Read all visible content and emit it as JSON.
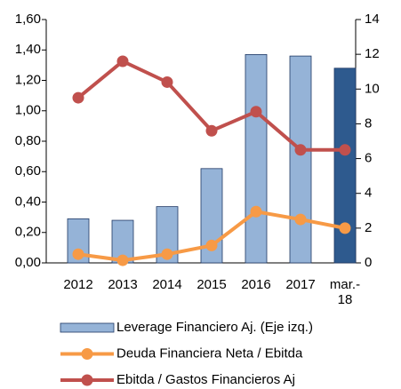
{
  "chart_data": {
    "type": "bar_line",
    "categories": [
      "2012",
      "2013",
      "2014",
      "2015",
      "2016",
      "2017",
      "mar.- 18"
    ],
    "series": [
      {
        "name": "Leverage Financiero Aj. (Eje izq.)",
        "type": "bar",
        "color": "#95b3d7",
        "colors": [
          "#95b3d7",
          "#95b3d7",
          "#95b3d7",
          "#95b3d7",
          "#95b3d7",
          "#95b3d7",
          "#2e5a8e"
        ],
        "values": [
          0.29,
          0.28,
          0.37,
          0.62,
          1.37,
          1.36,
          1.28
        ]
      },
      {
        "name": "Deuda Financiera Neta / Ebitda",
        "type": "line",
        "axis": "y2",
        "color": "#f79a46",
        "values": [
          0.5,
          0.15,
          0.5,
          1.0,
          2.95,
          2.5,
          2.0
        ]
      },
      {
        "name": "Ebitda / Gastos Financieros Aj",
        "type": "line",
        "axis": "y2",
        "color": "#c0504d",
        "values": [
          9.5,
          11.6,
          10.4,
          7.6,
          8.7,
          6.5,
          6.5
        ]
      }
    ],
    "ylim": [
      0,
      1.6
    ],
    "yticks": [
      {
        "value": 0,
        "label": "0,00"
      },
      {
        "value": 0.2,
        "label": "0,20"
      },
      {
        "value": 0.4,
        "label": "0,40"
      },
      {
        "value": 0.6,
        "label": "0,60"
      },
      {
        "value": 0.8,
        "label": "0,80"
      },
      {
        "value": 1.0,
        "label": "1,00"
      },
      {
        "value": 1.2,
        "label": "1,20"
      },
      {
        "value": 1.4,
        "label": "1,40"
      },
      {
        "value": 1.6,
        "label": "1,60"
      }
    ],
    "y2lim": [
      0,
      14
    ],
    "y2ticks": [
      0,
      2,
      4,
      6,
      8,
      10,
      12,
      14
    ],
    "legend": "bottom"
  }
}
